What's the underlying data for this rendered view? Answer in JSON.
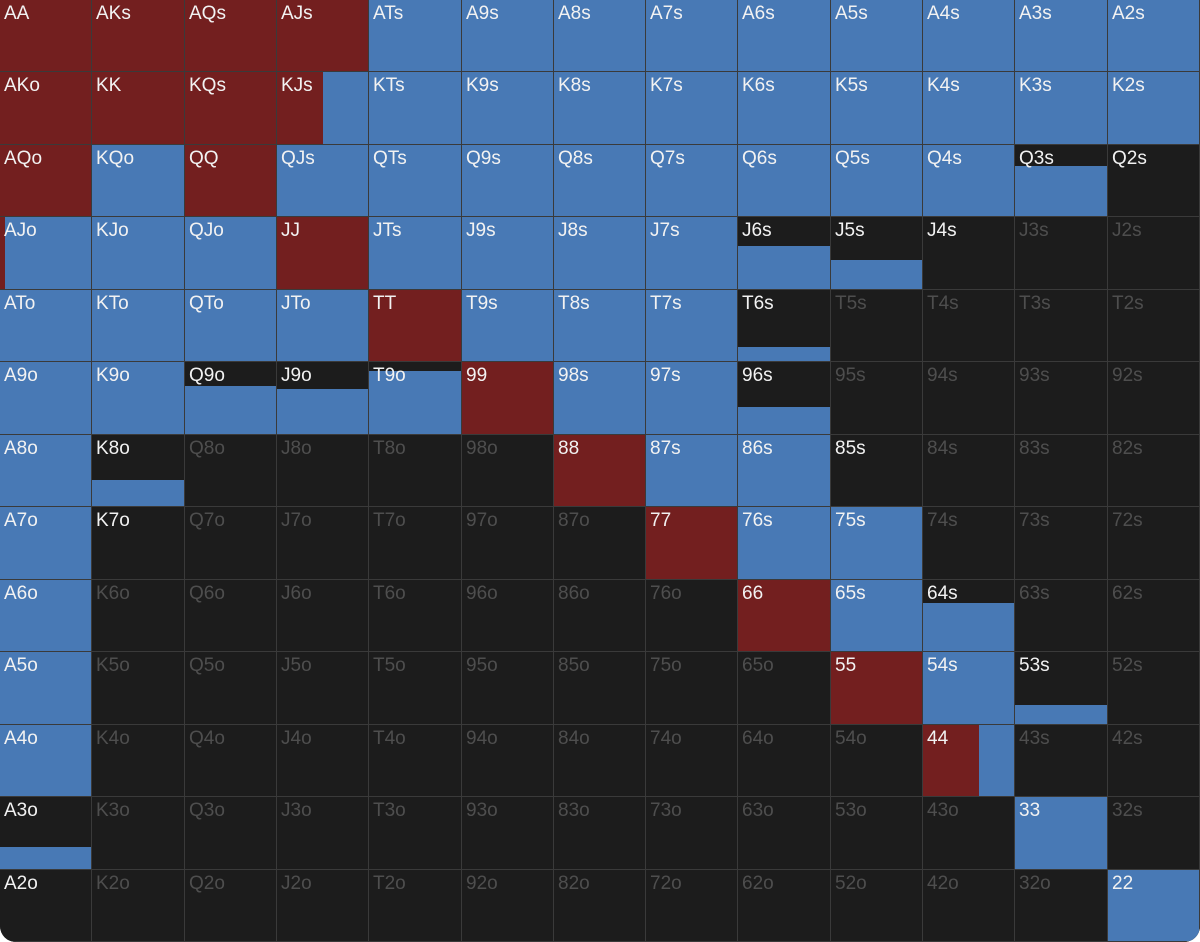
{
  "ranks": [
    "A",
    "K",
    "Q",
    "J",
    "T",
    "9",
    "8",
    "7",
    "6",
    "5",
    "4",
    "3",
    "2"
  ],
  "colors": {
    "raise": "#731f1f",
    "call": "#4879b5",
    "fold": "#1c1c1c",
    "label_bright": "#f2f2f2",
    "label_dim": "#4e4e4e",
    "grid_line": "#3a3a3a"
  },
  "hands": [
    {
      "label": "AA",
      "raise": 1,
      "call": 0,
      "dim": false
    },
    {
      "label": "AKs",
      "raise": 1,
      "call": 0,
      "dim": false
    },
    {
      "label": "AQs",
      "raise": 1,
      "call": 0,
      "dim": false
    },
    {
      "label": "AJs",
      "raise": 1,
      "call": 0,
      "dim": false
    },
    {
      "label": "ATs",
      "raise": 0,
      "call": 1,
      "dim": false
    },
    {
      "label": "A9s",
      "raise": 0,
      "call": 1,
      "dim": false
    },
    {
      "label": "A8s",
      "raise": 0,
      "call": 1,
      "dim": false
    },
    {
      "label": "A7s",
      "raise": 0,
      "call": 1,
      "dim": false
    },
    {
      "label": "A6s",
      "raise": 0,
      "call": 1,
      "dim": false
    },
    {
      "label": "A5s",
      "raise": 0,
      "call": 1,
      "dim": false
    },
    {
      "label": "A4s",
      "raise": 0,
      "call": 1,
      "dim": false
    },
    {
      "label": "A3s",
      "raise": 0,
      "call": 1,
      "dim": false
    },
    {
      "label": "A2s",
      "raise": 0,
      "call": 1,
      "dim": false
    },
    {
      "label": "AKo",
      "raise": 1,
      "call": 0,
      "dim": false
    },
    {
      "label": "KK",
      "raise": 1,
      "call": 0,
      "dim": false
    },
    {
      "label": "KQs",
      "raise": 1,
      "call": 0,
      "dim": false
    },
    {
      "label": "KJs",
      "raise": 0.5,
      "call": 0.5,
      "dim": false
    },
    {
      "label": "KTs",
      "raise": 0,
      "call": 1,
      "dim": false
    },
    {
      "label": "K9s",
      "raise": 0,
      "call": 1,
      "dim": false
    },
    {
      "label": "K8s",
      "raise": 0,
      "call": 1,
      "dim": false
    },
    {
      "label": "K7s",
      "raise": 0,
      "call": 1,
      "dim": false
    },
    {
      "label": "K6s",
      "raise": 0,
      "call": 1,
      "dim": false
    },
    {
      "label": "K5s",
      "raise": 0,
      "call": 1,
      "dim": false
    },
    {
      "label": "K4s",
      "raise": 0,
      "call": 1,
      "dim": false
    },
    {
      "label": "K3s",
      "raise": 0,
      "call": 1,
      "dim": false
    },
    {
      "label": "K2s",
      "raise": 0,
      "call": 1,
      "dim": false
    },
    {
      "label": "AQo",
      "raise": 1,
      "call": 0,
      "dim": false
    },
    {
      "label": "KQo",
      "raise": 0,
      "call": 1,
      "dim": false
    },
    {
      "label": "QQ",
      "raise": 1,
      "call": 0,
      "dim": false
    },
    {
      "label": "QJs",
      "raise": 0,
      "call": 1,
      "dim": false
    },
    {
      "label": "QTs",
      "raise": 0,
      "call": 1,
      "dim": false
    },
    {
      "label": "Q9s",
      "raise": 0,
      "call": 1,
      "dim": false
    },
    {
      "label": "Q8s",
      "raise": 0,
      "call": 1,
      "dim": false
    },
    {
      "label": "Q7s",
      "raise": 0,
      "call": 1,
      "dim": false
    },
    {
      "label": "Q6s",
      "raise": 0,
      "call": 1,
      "dim": false
    },
    {
      "label": "Q5s",
      "raise": 0,
      "call": 1,
      "dim": false
    },
    {
      "label": "Q4s",
      "raise": 0,
      "call": 1,
      "dim": false
    },
    {
      "label": "Q3s",
      "raise": 0,
      "call": 0.7,
      "dim": false
    },
    {
      "label": "Q2s",
      "raise": 0,
      "call": 0,
      "dim": false
    },
    {
      "label": "AJo",
      "raise": 0.06,
      "call": 0.94,
      "dim": false
    },
    {
      "label": "KJo",
      "raise": 0,
      "call": 1,
      "dim": false
    },
    {
      "label": "QJo",
      "raise": 0,
      "call": 1,
      "dim": false
    },
    {
      "label": "JJ",
      "raise": 1,
      "call": 0,
      "dim": false
    },
    {
      "label": "JTs",
      "raise": 0,
      "call": 1,
      "dim": false
    },
    {
      "label": "J9s",
      "raise": 0,
      "call": 1,
      "dim": false
    },
    {
      "label": "J8s",
      "raise": 0,
      "call": 1,
      "dim": false
    },
    {
      "label": "J7s",
      "raise": 0,
      "call": 1,
      "dim": false
    },
    {
      "label": "J6s",
      "raise": 0,
      "call": 0.6,
      "dim": false
    },
    {
      "label": "J5s",
      "raise": 0,
      "call": 0.4,
      "dim": false
    },
    {
      "label": "J4s",
      "raise": 0,
      "call": 0,
      "dim": false
    },
    {
      "label": "J3s",
      "raise": 0,
      "call": 0,
      "dim": true
    },
    {
      "label": "J2s",
      "raise": 0,
      "call": 0,
      "dim": true
    },
    {
      "label": "ATo",
      "raise": 0,
      "call": 1,
      "dim": false
    },
    {
      "label": "KTo",
      "raise": 0,
      "call": 1,
      "dim": false
    },
    {
      "label": "QTo",
      "raise": 0,
      "call": 1,
      "dim": false
    },
    {
      "label": "JTo",
      "raise": 0,
      "call": 1,
      "dim": false
    },
    {
      "label": "TT",
      "raise": 1,
      "call": 0,
      "dim": false
    },
    {
      "label": "T9s",
      "raise": 0,
      "call": 1,
      "dim": false
    },
    {
      "label": "T8s",
      "raise": 0,
      "call": 1,
      "dim": false
    },
    {
      "label": "T7s",
      "raise": 0,
      "call": 1,
      "dim": false
    },
    {
      "label": "T6s",
      "raise": 0,
      "call": 0.2,
      "dim": false
    },
    {
      "label": "T5s",
      "raise": 0,
      "call": 0,
      "dim": true
    },
    {
      "label": "T4s",
      "raise": 0,
      "call": 0,
      "dim": true
    },
    {
      "label": "T3s",
      "raise": 0,
      "call": 0,
      "dim": true
    },
    {
      "label": "T2s",
      "raise": 0,
      "call": 0,
      "dim": true
    },
    {
      "label": "A9o",
      "raise": 0,
      "call": 1,
      "dim": false
    },
    {
      "label": "K9o",
      "raise": 0,
      "call": 1,
      "dim": false
    },
    {
      "label": "Q9o",
      "raise": 0,
      "call": 0.67,
      "dim": false
    },
    {
      "label": "J9o",
      "raise": 0,
      "call": 0.62,
      "dim": false
    },
    {
      "label": "T9o",
      "raise": 0,
      "call": 0.88,
      "dim": false
    },
    {
      "label": "99",
      "raise": 1,
      "call": 0,
      "dim": false
    },
    {
      "label": "98s",
      "raise": 0,
      "call": 1,
      "dim": false
    },
    {
      "label": "97s",
      "raise": 0,
      "call": 1,
      "dim": false
    },
    {
      "label": "96s",
      "raise": 0,
      "call": 0.38,
      "dim": false
    },
    {
      "label": "95s",
      "raise": 0,
      "call": 0,
      "dim": true
    },
    {
      "label": "94s",
      "raise": 0,
      "call": 0,
      "dim": true
    },
    {
      "label": "93s",
      "raise": 0,
      "call": 0,
      "dim": true
    },
    {
      "label": "92s",
      "raise": 0,
      "call": 0,
      "dim": true
    },
    {
      "label": "A8o",
      "raise": 0,
      "call": 1,
      "dim": false
    },
    {
      "label": "K8o",
      "raise": 0,
      "call": 0.37,
      "dim": false
    },
    {
      "label": "Q8o",
      "raise": 0,
      "call": 0,
      "dim": true
    },
    {
      "label": "J8o",
      "raise": 0,
      "call": 0,
      "dim": true
    },
    {
      "label": "T8o",
      "raise": 0,
      "call": 0,
      "dim": true
    },
    {
      "label": "98o",
      "raise": 0,
      "call": 0,
      "dim": true
    },
    {
      "label": "88",
      "raise": 1,
      "call": 0,
      "dim": false
    },
    {
      "label": "87s",
      "raise": 0,
      "call": 1,
      "dim": false
    },
    {
      "label": "86s",
      "raise": 0,
      "call": 1,
      "dim": false
    },
    {
      "label": "85s",
      "raise": 0,
      "call": 0,
      "dim": false
    },
    {
      "label": "84s",
      "raise": 0,
      "call": 0,
      "dim": true
    },
    {
      "label": "83s",
      "raise": 0,
      "call": 0,
      "dim": true
    },
    {
      "label": "82s",
      "raise": 0,
      "call": 0,
      "dim": true
    },
    {
      "label": "A7o",
      "raise": 0,
      "call": 1,
      "dim": false
    },
    {
      "label": "K7o",
      "raise": 0,
      "call": 0,
      "dim": false
    },
    {
      "label": "Q7o",
      "raise": 0,
      "call": 0,
      "dim": true
    },
    {
      "label": "J7o",
      "raise": 0,
      "call": 0,
      "dim": true
    },
    {
      "label": "T7o",
      "raise": 0,
      "call": 0,
      "dim": true
    },
    {
      "label": "97o",
      "raise": 0,
      "call": 0,
      "dim": true
    },
    {
      "label": "87o",
      "raise": 0,
      "call": 0,
      "dim": true
    },
    {
      "label": "77",
      "raise": 1,
      "call": 0,
      "dim": false
    },
    {
      "label": "76s",
      "raise": 0,
      "call": 1,
      "dim": false
    },
    {
      "label": "75s",
      "raise": 0,
      "call": 1,
      "dim": false
    },
    {
      "label": "74s",
      "raise": 0,
      "call": 0,
      "dim": true
    },
    {
      "label": "73s",
      "raise": 0,
      "call": 0,
      "dim": true
    },
    {
      "label": "72s",
      "raise": 0,
      "call": 0,
      "dim": true
    },
    {
      "label": "A6o",
      "raise": 0,
      "call": 1,
      "dim": false
    },
    {
      "label": "K6o",
      "raise": 0,
      "call": 0,
      "dim": true
    },
    {
      "label": "Q6o",
      "raise": 0,
      "call": 0,
      "dim": true
    },
    {
      "label": "J6o",
      "raise": 0,
      "call": 0,
      "dim": true
    },
    {
      "label": "T6o",
      "raise": 0,
      "call": 0,
      "dim": true
    },
    {
      "label": "96o",
      "raise": 0,
      "call": 0,
      "dim": true
    },
    {
      "label": "86o",
      "raise": 0,
      "call": 0,
      "dim": true
    },
    {
      "label": "76o",
      "raise": 0,
      "call": 0,
      "dim": true
    },
    {
      "label": "66",
      "raise": 1,
      "call": 0,
      "dim": false
    },
    {
      "label": "65s",
      "raise": 0,
      "call": 1,
      "dim": false
    },
    {
      "label": "64s",
      "raise": 0,
      "call": 0.68,
      "dim": false
    },
    {
      "label": "63s",
      "raise": 0,
      "call": 0,
      "dim": true
    },
    {
      "label": "62s",
      "raise": 0,
      "call": 0,
      "dim": true
    },
    {
      "label": "A5o",
      "raise": 0,
      "call": 1,
      "dim": false
    },
    {
      "label": "K5o",
      "raise": 0,
      "call": 0,
      "dim": true
    },
    {
      "label": "Q5o",
      "raise": 0,
      "call": 0,
      "dim": true
    },
    {
      "label": "J5o",
      "raise": 0,
      "call": 0,
      "dim": true
    },
    {
      "label": "T5o",
      "raise": 0,
      "call": 0,
      "dim": true
    },
    {
      "label": "95o",
      "raise": 0,
      "call": 0,
      "dim": true
    },
    {
      "label": "85o",
      "raise": 0,
      "call": 0,
      "dim": true
    },
    {
      "label": "75o",
      "raise": 0,
      "call": 0,
      "dim": true
    },
    {
      "label": "65o",
      "raise": 0,
      "call": 0,
      "dim": true
    },
    {
      "label": "55",
      "raise": 1,
      "call": 0,
      "dim": false
    },
    {
      "label": "54s",
      "raise": 0,
      "call": 1,
      "dim": false
    },
    {
      "label": "53s",
      "raise": 0,
      "call": 0.26,
      "dim": false
    },
    {
      "label": "52s",
      "raise": 0,
      "call": 0,
      "dim": true
    },
    {
      "label": "A4o",
      "raise": 0,
      "call": 1,
      "dim": false
    },
    {
      "label": "K4o",
      "raise": 0,
      "call": 0,
      "dim": true
    },
    {
      "label": "Q4o",
      "raise": 0,
      "call": 0,
      "dim": true
    },
    {
      "label": "J4o",
      "raise": 0,
      "call": 0,
      "dim": true
    },
    {
      "label": "T4o",
      "raise": 0,
      "call": 0,
      "dim": true
    },
    {
      "label": "94o",
      "raise": 0,
      "call": 0,
      "dim": true
    },
    {
      "label": "84o",
      "raise": 0,
      "call": 0,
      "dim": true
    },
    {
      "label": "74o",
      "raise": 0,
      "call": 0,
      "dim": true
    },
    {
      "label": "64o",
      "raise": 0,
      "call": 0,
      "dim": true
    },
    {
      "label": "54o",
      "raise": 0,
      "call": 0,
      "dim": true
    },
    {
      "label": "44",
      "raise": 0.61,
      "call": 0.39,
      "dim": false
    },
    {
      "label": "43s",
      "raise": 0,
      "call": 0,
      "dim": true
    },
    {
      "label": "42s",
      "raise": 0,
      "call": 0,
      "dim": true
    },
    {
      "label": "A3o",
      "raise": 0,
      "call": 0.3,
      "dim": false
    },
    {
      "label": "K3o",
      "raise": 0,
      "call": 0,
      "dim": true
    },
    {
      "label": "Q3o",
      "raise": 0,
      "call": 0,
      "dim": true
    },
    {
      "label": "J3o",
      "raise": 0,
      "call": 0,
      "dim": true
    },
    {
      "label": "T3o",
      "raise": 0,
      "call": 0,
      "dim": true
    },
    {
      "label": "93o",
      "raise": 0,
      "call": 0,
      "dim": true
    },
    {
      "label": "83o",
      "raise": 0,
      "call": 0,
      "dim": true
    },
    {
      "label": "73o",
      "raise": 0,
      "call": 0,
      "dim": true
    },
    {
      "label": "63o",
      "raise": 0,
      "call": 0,
      "dim": true
    },
    {
      "label": "53o",
      "raise": 0,
      "call": 0,
      "dim": true
    },
    {
      "label": "43o",
      "raise": 0,
      "call": 0,
      "dim": true
    },
    {
      "label": "33",
      "raise": 0,
      "call": 1,
      "dim": false
    },
    {
      "label": "32s",
      "raise": 0,
      "call": 0,
      "dim": true
    },
    {
      "label": "A2o",
      "raise": 0,
      "call": 0,
      "dim": false
    },
    {
      "label": "K2o",
      "raise": 0,
      "call": 0,
      "dim": true
    },
    {
      "label": "Q2o",
      "raise": 0,
      "call": 0,
      "dim": true
    },
    {
      "label": "J2o",
      "raise": 0,
      "call": 0,
      "dim": true
    },
    {
      "label": "T2o",
      "raise": 0,
      "call": 0,
      "dim": true
    },
    {
      "label": "92o",
      "raise": 0,
      "call": 0,
      "dim": true
    },
    {
      "label": "82o",
      "raise": 0,
      "call": 0,
      "dim": true
    },
    {
      "label": "72o",
      "raise": 0,
      "call": 0,
      "dim": true
    },
    {
      "label": "62o",
      "raise": 0,
      "call": 0,
      "dim": true
    },
    {
      "label": "52o",
      "raise": 0,
      "call": 0,
      "dim": true
    },
    {
      "label": "42o",
      "raise": 0,
      "call": 0,
      "dim": true
    },
    {
      "label": "32o",
      "raise": 0,
      "call": 0,
      "dim": true
    },
    {
      "label": "22",
      "raise": 0,
      "call": 1,
      "dim": false
    }
  ]
}
